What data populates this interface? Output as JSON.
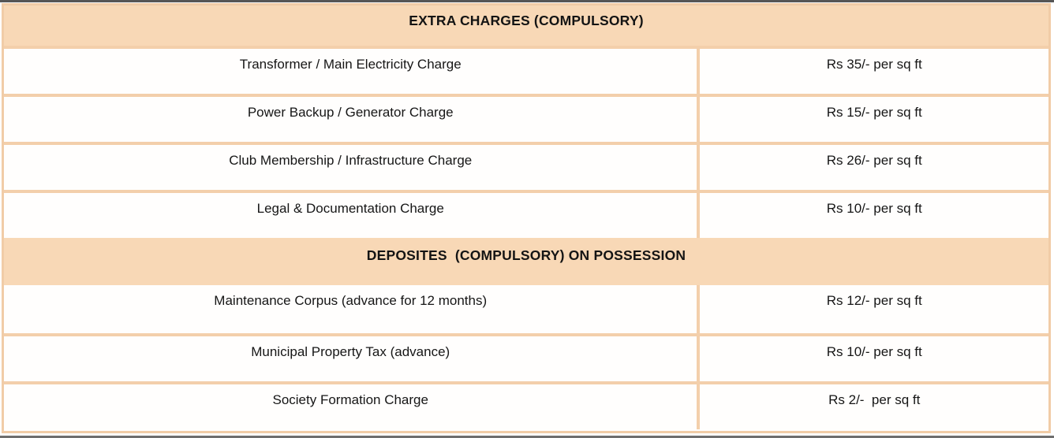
{
  "document": {
    "title": "Extra charges and deposits table",
    "colors": {
      "band_background": "#f8d8b6",
      "grid_border": "#f3cfab",
      "outer_border": "#f1cca7",
      "cell_background": "#fffefd",
      "text": "#161616",
      "top_edge": "#565656",
      "bottom_edge": "#6e6e6e"
    },
    "sections": [
      {
        "header": "EXTRA CHARGES (COMPULSORY)",
        "rows": [
          {
            "label": "Transformer / Main Electricity Charge",
            "value": "Rs 35/- per sq ft"
          },
          {
            "label": "Power Backup / Generator Charge",
            "value": "Rs 15/- per sq ft"
          },
          {
            "label": "Club Membership / Infrastructure Charge",
            "value": "Rs 26/- per sq ft"
          },
          {
            "label": "Legal & Documentation Charge",
            "value": "Rs 10/- per sq ft"
          }
        ]
      },
      {
        "header": "DEPOSITES  (COMPULSORY) ON POSSESSION",
        "rows": [
          {
            "label": "Maintenance Corpus (advance for 12 months)",
            "value": "Rs 12/- per sq ft"
          },
          {
            "label": "Municipal Property Tax (advance)",
            "value": "Rs 10/- per sq ft"
          },
          {
            "label": "Society Formation Charge",
            "value": "Rs 2/-  per sq ft"
          }
        ]
      }
    ]
  }
}
